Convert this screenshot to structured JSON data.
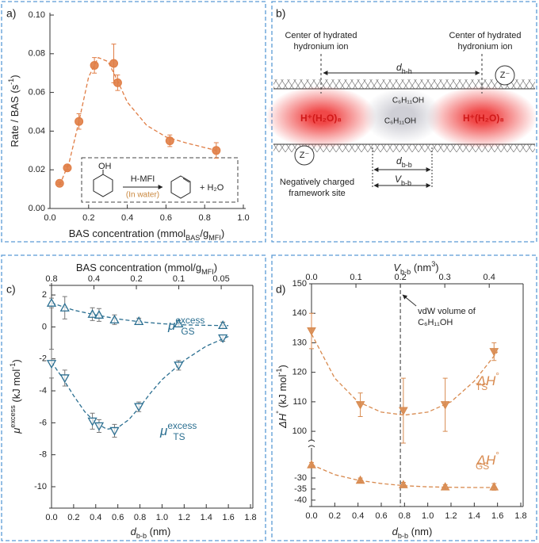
{
  "chart_data": [
    {
      "panel": "a)",
      "type": "scatter",
      "xlabel": [
        "BAS concentration (mmol",
        "BAS",
        "/g",
        "MFI",
        ")"
      ],
      "ylabel": [
        "Rate / BAS (s",
        "-1",
        ")"
      ],
      "xlim": [
        0,
        1
      ],
      "xticks": [
        {
          "value": 0,
          "label": "0.0"
        },
        0.2,
        0.4,
        0.6,
        0.8,
        {
          "value": 1,
          "label": "1.0"
        }
      ],
      "ylim": [
        0,
        0.1
      ],
      "yticks": [
        {
          "value": 0,
          "label": "0.00"
        },
        {
          "value": 0.02,
          "label": "0.02"
        },
        {
          "value": 0.04,
          "label": "0.04"
        },
        {
          "value": 0.06,
          "label": "0.06"
        },
        {
          "value": 0.08,
          "label": "0.08"
        },
        {
          "value": 0.1,
          "label": "0.10"
        }
      ],
      "series": [
        {
          "color": "#e07d45",
          "marker": "circle",
          "filled": true,
          "x": [
            0.05,
            0.09,
            0.15,
            0.23,
            0.33,
            0.35,
            0.62,
            0.86
          ],
          "values": [
            0.013,
            0.021,
            0.045,
            0.074,
            0.075,
            0.065,
            0.035,
            0.03
          ],
          "errors": [
            0.0005,
            0.001,
            0.004,
            0.004,
            0.01,
            0.004,
            0.003,
            0.004
          ],
          "fit": {
            "x": [
              0.05,
              0.1,
              0.15,
              0.2,
              0.25,
              0.3,
              0.35,
              0.4,
              0.5,
              0.6,
              0.7,
              0.86
            ],
            "values": [
              0.012,
              0.024,
              0.045,
              0.068,
              0.078,
              0.076,
              0.066,
              0.055,
              0.043,
              0.037,
              0.034,
              0.03
            ]
          }
        }
      ],
      "scheme": {
        "reactant": "OH",
        "catalyst": "H-MFI",
        "condition": "(In water)",
        "byproduct": "+ H₂O"
      }
    },
    {
      "panel": "c)",
      "type": "scatter",
      "x2label": [
        "BAS concentration (mmol/g",
        "MFI",
        ")"
      ],
      "x2lim": [
        0.8,
        0.031
      ],
      "x2log": true,
      "x2ticks": [
        0.8,
        0.4,
        0.2,
        0.1,
        0.05
      ],
      "xlabel": [
        "d",
        "b-b",
        " (nm)"
      ],
      "ylabel": [
        "μ",
        "excess",
        " (kJ mol",
        "-1",
        ")"
      ],
      "xlim": [
        0,
        1.8
      ],
      "xticks": [
        {
          "value": 0,
          "label": "0.0"
        },
        0.2,
        0.4,
        0.6,
        0.8,
        {
          "value": 1,
          "label": "1.0"
        },
        1.2,
        1.4,
        1.6,
        1.8
      ],
      "ylim": [
        -11.34,
        2.6
      ],
      "yticks": [
        -10,
        -8,
        -6,
        -4,
        -2,
        0,
        2
      ],
      "series": [
        {
          "color": "#2b6f91",
          "marker": "triangle-up",
          "filled": false,
          "annotation": [
            "μ",
            "excess",
            "GS"
          ],
          "x": [
            0,
            0.12,
            0.37,
            0.43,
            0.57,
            0.79,
            1.15,
            1.55
          ],
          "values": [
            1.5,
            1.2,
            0.8,
            0.75,
            0.45,
            0.35,
            0.2,
            0.1
          ],
          "errors": [
            0.3,
            0.7,
            0.4,
            0.4,
            0.3,
            0.2,
            0.2,
            0.2
          ],
          "fit": {
            "x": [
              0,
              0.2,
              0.4,
              0.6,
              0.8,
              1.0,
              1.2,
              1.4,
              1.6
            ],
            "values": [
              1.5,
              1.05,
              0.75,
              0.5,
              0.32,
              0.2,
              0.13,
              0.1,
              0.08
            ]
          }
        },
        {
          "color": "#2b6f91",
          "marker": "triangle-down",
          "filled": false,
          "annotation": [
            "μ",
            "excess",
            "TS"
          ],
          "x": [
            0,
            0.12,
            0.37,
            0.43,
            0.57,
            0.79,
            1.15,
            1.55
          ],
          "values": [
            -2.3,
            -3.2,
            -5.9,
            -6.2,
            -6.5,
            -5.0,
            -2.4,
            -0.7
          ],
          "errors": [
            0.9,
            0.5,
            0.5,
            0.4,
            0.4,
            0.3,
            0.3,
            0.2
          ],
          "fit": {
            "x": [
              0,
              0.1,
              0.2,
              0.3,
              0.4,
              0.5,
              0.6,
              0.7,
              0.8,
              0.9,
              1.0,
              1.2,
              1.4,
              1.6
            ],
            "values": [
              -2.2,
              -3.2,
              -4.3,
              -5.3,
              -6.0,
              -6.4,
              -6.3,
              -5.8,
              -5.0,
              -4.1,
              -3.3,
              -2.1,
              -1.2,
              -0.6
            ]
          }
        }
      ]
    },
    {
      "panel": "d)",
      "type": "scatter",
      "x2label": [
        "V",
        "b-b",
        " (nm",
        "3",
        ")"
      ],
      "x2lim": [
        0,
        0.471
      ],
      "x2ticks": [
        {
          "value": 0,
          "label": "0.0"
        },
        0.1,
        0.2,
        0.3,
        0.4
      ],
      "xlabel": [
        "d",
        "b-b",
        " (nm)"
      ],
      "ylabel": [
        "ΔH",
        "°",
        " (kJ mol",
        "-1",
        ")"
      ],
      "xlim": [
        0,
        1.8
      ],
      "xticks": [
        {
          "value": 0,
          "label": "0.0"
        },
        0.2,
        0.4,
        0.6,
        0.8,
        {
          "value": 1,
          "label": "1.0"
        },
        1.2,
        1.4,
        1.6,
        1.8
      ],
      "ylim": [
        96.8,
        150
      ],
      "yticks": [
        100,
        110,
        120,
        130,
        140,
        150
      ],
      "ylim_lower": [
        -42.9,
        -16.4
      ],
      "yticks_lower": [
        -40,
        -35,
        -30
      ],
      "vline_x2": 0.2,
      "vline_note": [
        "vdW volume of",
        "C₆H₁₁OH"
      ],
      "series": [
        {
          "color": "#d88a4f",
          "marker": "triangle-down",
          "filled": true,
          "axis": "upper",
          "annotation": [
            "ΔH",
            "°",
            "TS"
          ],
          "x": [
            0,
            0.42,
            0.79,
            1.15,
            1.57
          ],
          "values": [
            134,
            109,
            107,
            109,
            127
          ],
          "errors": [
            6,
            4,
            11,
            9,
            3
          ],
          "fit": {
            "x": [
              0,
              0.2,
              0.4,
              0.6,
              0.8,
              1.0,
              1.2,
              1.4,
              1.6
            ],
            "values": [
              133,
              118,
              110,
              106.5,
              105.5,
              106.5,
              110,
              117,
              127
            ]
          }
        },
        {
          "color": "#d88a4f",
          "marker": "triangle-up",
          "filled": true,
          "axis": "lower",
          "annotation": [
            "ΔH",
            "°",
            "GS"
          ],
          "x": [
            0,
            0.42,
            0.79,
            1.15,
            1.57
          ],
          "values": [
            -24,
            -31,
            -33,
            -34,
            -34
          ],
          "errors": [
            1,
            1,
            1,
            1,
            1.5
          ],
          "fit": {
            "x": [
              0,
              0.2,
              0.4,
              0.6,
              0.8,
              1.0,
              1.2,
              1.4,
              1.6
            ],
            "values": [
              -24,
              -28.5,
              -31,
              -32.5,
              -33.5,
              -34,
              -34.2,
              -34.3,
              -34.3
            ]
          }
        }
      ]
    }
  ],
  "diagram": {
    "panel": "b)",
    "left_center": [
      "Center of hydrated",
      "hydronium ion"
    ],
    "right_center": [
      "Center of hydrated",
      "hydronium ion"
    ],
    "d_hh": [
      "d",
      "h-h"
    ],
    "ion_left": "H⁺(H₂O)₈",
    "ion_right": "H⁺(H₂O)₈",
    "molecules": [
      "C₆H₁₁OH",
      "C₆H₁₁OH"
    ],
    "z_top": "Z⁻",
    "z_bottom": "Z⁻",
    "site": [
      "Negatively charged",
      "framework site"
    ],
    "d_bb": [
      "d",
      "b-b"
    ],
    "v_bb": [
      "V",
      "b-b"
    ]
  }
}
